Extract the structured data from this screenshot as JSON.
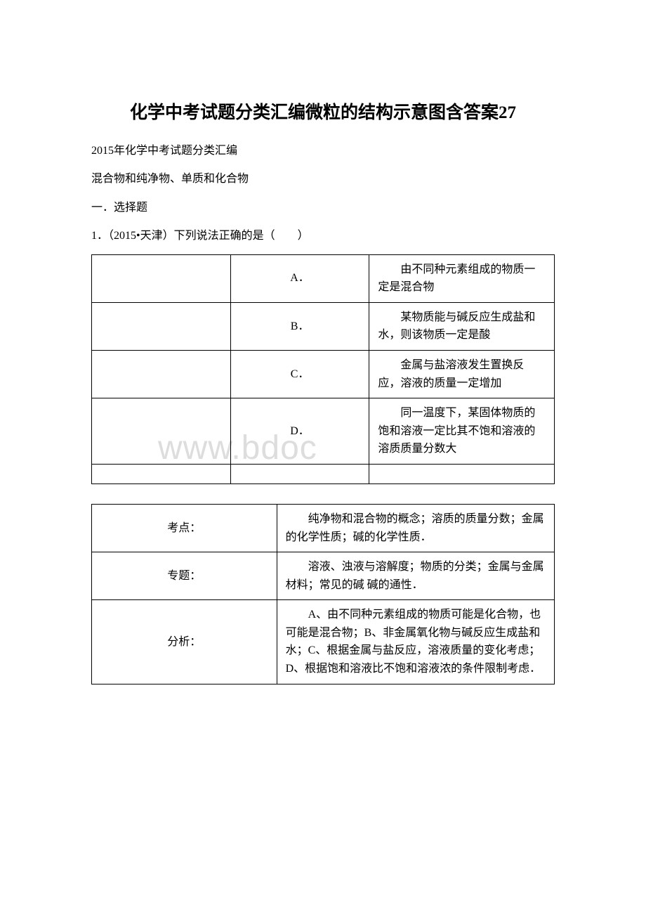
{
  "title": "化学中考试题分类汇编微粒的结构示意图含答案27",
  "lines": {
    "l1": "2015年化学中考试题分类汇编",
    "l2": "混合物和纯净物、单质和化合物",
    "l3": "一．选择题",
    "l4": "1．（2015•天津）下列说法正确的是（　　）"
  },
  "table1": {
    "rows": [
      {
        "letter": "A．",
        "text": "由不同种元素组成的物质一定是混合物"
      },
      {
        "letter": "B．",
        "text": "某物质能与碱反应生成盐和水，则该物质一定是酸"
      },
      {
        "letter": "C．",
        "text": "金属与盐溶液发生置换反应，溶液的质量一定增加"
      },
      {
        "letter": "D．",
        "text": "同一温度下，某固体物质的饱和溶液一定比其不饱和溶液的溶质质量分数大"
      }
    ]
  },
  "table2": {
    "rows": [
      {
        "label": "考点：",
        "text": "纯净物和混合物的概念；溶质的质量分数；金属的化学性质；碱的化学性质．"
      },
      {
        "label": "专题：",
        "text": "溶液、浊液与溶解度；物质的分类；金属与金属材料；常见的碱 碱的通性．"
      },
      {
        "label": "分析：",
        "text": "A、由不同种元素组成的物质可能是化合物，也可能是混合物；B、非金属氧化物与碱反应生成盐和水；C、根据金属与盐反应，溶液质量的变化考虑；D、根据饱和溶液比不饱和溶液浓的条件限制考虑．"
      }
    ]
  },
  "watermark": "www.bdoc",
  "colors": {
    "text": "#000000",
    "background": "#ffffff",
    "border": "#000000",
    "watermark": "#dddddd"
  },
  "fonts": {
    "title_size": 25,
    "body_size": 16,
    "watermark_size": 48
  }
}
